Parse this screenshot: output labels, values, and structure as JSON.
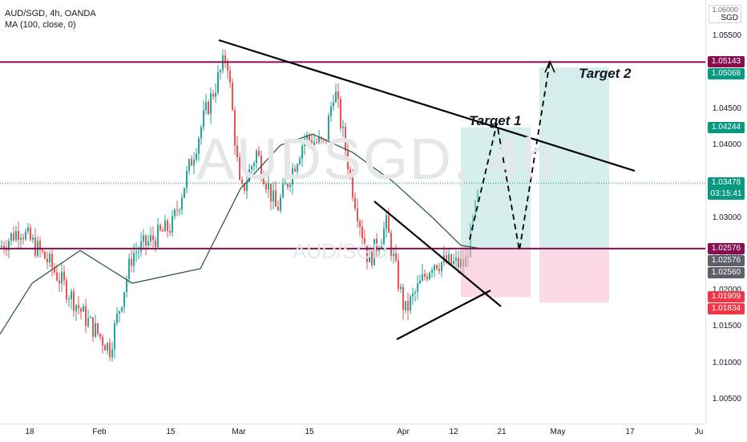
{
  "legend": {
    "symbol": "AUD/SGD, 4h, OANDA",
    "indicator": "MA (100, close, 0)"
  },
  "watermark": {
    "big": "AUDSGD, 4h",
    "small": "AUD/SGD"
  },
  "yaxis": {
    "currency_top": "1.06000",
    "currency": "SGD",
    "ticks": [
      "1.05500",
      "1.05000",
      "1.04500",
      "1.04000",
      "1.03500",
      "1.03000",
      "1.02500",
      "1.02000",
      "1.01500",
      "1.01000",
      "1.00500"
    ],
    "badges": [
      {
        "label": "1.05143",
        "value": 1.05143,
        "color": "#880e4f"
      },
      {
        "label": "1.05068",
        "value": 1.05068,
        "color": "#089981"
      },
      {
        "label": "1.04244",
        "value": 1.04244,
        "color": "#089981"
      },
      {
        "label": "1.03478",
        "value": 1.03478,
        "color": "#089981",
        "extra": "03:15:41"
      },
      {
        "label": "1.02576",
        "value": 1.02576,
        "color": "#880e4f"
      },
      {
        "label": "1.02576",
        "value": 1.02576,
        "color": "#5d606b"
      },
      {
        "label": "1.02560",
        "value": 1.0256,
        "color": "#5d606b"
      },
      {
        "label": "1.01909",
        "value": 1.01909,
        "color": "#f23645"
      },
      {
        "label": "1.01834",
        "value": 1.01834,
        "color": "#f23645"
      }
    ]
  },
  "xaxis": {
    "ticks": [
      "18",
      "Feb",
      "15",
      "Mar",
      "15",
      "Apr",
      "12",
      "21",
      "May",
      "17",
      "Ju"
    ]
  },
  "annotations": {
    "target1": "Target 1",
    "target2": "Target 2"
  },
  "colors": {
    "up": "#26a69a",
    "down": "#ef5350",
    "ma": "#2e5e3e",
    "level": "#880e4f",
    "profit_zone": "#b2dfdb",
    "loss_zone": "#f8bbd0"
  },
  "chart_data": {
    "type": "candlestick",
    "series": [
      {
        "name": "MA (100, close, 0)"
      }
    ],
    "levels": [
      1.05143,
      1.02576
    ],
    "ylim": [
      1.003,
      1.0625
    ],
    "last_price": 1.03478
  }
}
